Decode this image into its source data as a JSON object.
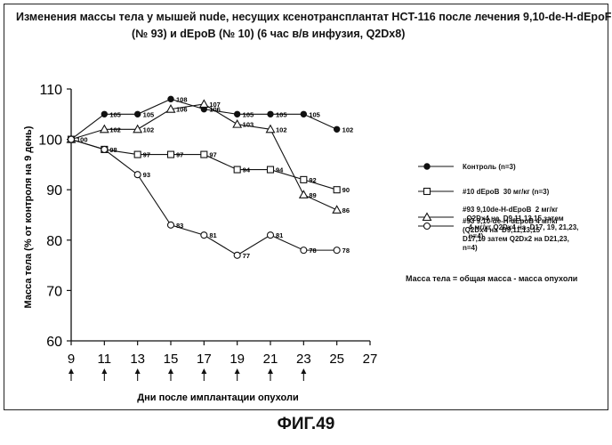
{
  "chart_data": {
    "type": "line",
    "title_line1": "Изменения массы тела у мышей nude, несущих ксенотрансплантат HCT-116 после лечения 9,10-de-H-dEpoF",
    "title_line2": "(№ 93) и dEpoB (№ 10) (6 час в/в инфузия, Q2Dx8)",
    "xlabel": "Дни после имплантации опухоли",
    "ylabel": "Масса тела (% от контроля на 9 день)",
    "xlim": [
      9,
      27
    ],
    "ylim": [
      60,
      110
    ],
    "xticks": [
      "9",
      "11",
      "13",
      "15",
      "17",
      "19",
      "21",
      "23",
      "25",
      "27"
    ],
    "yticks": [
      "60",
      "70",
      "80",
      "90",
      "100",
      "110"
    ],
    "dose_days": [
      9,
      11,
      13,
      15,
      17,
      19,
      21,
      23
    ],
    "series": [
      {
        "name": "Контроль (n=3)",
        "marker": "filled-circle",
        "x": [
          9,
          11,
          13,
          15,
          17,
          19,
          21,
          23,
          25
        ],
        "y": [
          100,
          105,
          105,
          108,
          106,
          105,
          105,
          105,
          102
        ],
        "labels": [
          "100",
          "105",
          "105",
          "108",
          "106",
          "105",
          "105",
          "105",
          "102"
        ]
      },
      {
        "name": "#10 dEpoB 30 мг/кг (n=3)",
        "marker": "square",
        "x": [
          9,
          11,
          13,
          15,
          17,
          19,
          21,
          23,
          25
        ],
        "y": [
          100,
          98,
          97,
          97,
          97,
          94,
          94,
          92,
          90
        ],
        "labels": [
          "",
          "98",
          "97",
          "97",
          "97",
          "94",
          "94",
          "92",
          "90"
        ]
      },
      {
        "name": "#93 9,10de-H-dEpoB 2 мг/кг Q2Dx4 на D9,11,13,15 затем 4 мг/кг Q2Dx4 на D17, 19, 21,23, n=4)",
        "marker": "triangle",
        "x": [
          9,
          11,
          13,
          15,
          17,
          19,
          21,
          23,
          25
        ],
        "y": [
          100,
          102,
          102,
          106,
          107,
          103,
          102,
          89,
          86
        ],
        "labels": [
          "",
          "102",
          "102",
          "106",
          "107",
          "103",
          "102",
          "89",
          "86"
        ]
      },
      {
        "name": "#93 9,10-de-H-dEpoB 4 мг/кг (Q2Dx4 на D9,11,13,15 D17,19 затем Q2Dx2 на D21,23, n=4)",
        "marker": "open-circle",
        "x": [
          9,
          11,
          13,
          15,
          17,
          19,
          21,
          23,
          25
        ],
        "y": [
          100,
          98,
          93,
          83,
          81,
          77,
          81,
          78,
          78
        ],
        "labels": [
          "",
          "",
          "93",
          "83",
          "81",
          "77",
          "81",
          "78",
          "78"
        ]
      }
    ]
  },
  "legend": {
    "s1": "Контроль (n=3)",
    "s2": "#10 dEpoB  30 мг/кг (n=3)",
    "s3": "#93 9,10de-H-dEpoB  2 мг/кг\n  Q2Dx4 на  D9,11,13,15 затем\n   4 мг/кг Q2Dx4 на  D17, 19, 21,23,\n   n=4)",
    "s4": "#93 9,10-de-H-dEpoB 4 мг/кг\n(Q2Dx4 на  D9,11,13,15\nD17,19 затем Q2Dx2 на D21,23,\nn=4)"
  },
  "note": "Масса тела = общая масса - масса опухоли",
  "figure_caption": "ФИГ.49"
}
